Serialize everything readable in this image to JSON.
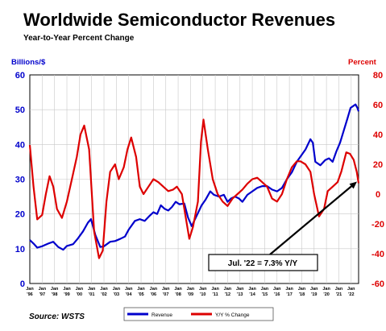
{
  "chart_data": {
    "type": "line",
    "title": "Worldwide Semiconductor Revenues",
    "subtitle": "Year-to-Year Percent Change",
    "y_left_label": "Billions/$",
    "y_right_label": "Percent",
    "y_left_range": [
      0,
      60
    ],
    "y_left_ticks": [
      "0",
      "10",
      "20",
      "30",
      "40",
      "50",
      "60"
    ],
    "y_right_range": [
      -60,
      80
    ],
    "y_right_ticks": [
      "-60",
      "-40",
      "-20",
      "0",
      "20",
      "40",
      "60",
      "80"
    ],
    "x_tick_top": [
      "Jan",
      "Jan",
      "Jan",
      "Jan",
      "Jan",
      "Jan",
      "Jan",
      "Jan",
      "Jan",
      "Jan",
      "Jan",
      "Jan",
      "Jan",
      "Jan",
      "Jan",
      "Jan",
      "Jan",
      "Jan",
      "Jan",
      "Jan",
      "Jan",
      "Jan",
      "Jan",
      "Jan",
      "Jan",
      "Jan",
      "Jan"
    ],
    "x_tick_bottom": [
      "'96",
      "'97",
      "'98",
      "'99",
      "'00",
      "'01",
      "'02",
      "'03",
      "'04",
      "'05",
      "'06",
      "'07",
      "'08",
      "'09",
      "'10",
      "'11",
      "'12",
      "'13",
      "'14",
      "'15",
      "'16",
      "'17",
      "'18",
      "'19",
      "'20",
      "'21",
      "'22"
    ],
    "x_start": 1996.0,
    "x_end": 2022.6,
    "grid": true,
    "legend_placement": "bottom",
    "annotation": "Jul. '22 = 7.3% Y/Y",
    "source": "Source: WSTS",
    "series": [
      {
        "name": "Revenue",
        "axis": "left",
        "color": "#0000cc",
        "points": [
          [
            1996.0,
            12.5
          ],
          [
            1996.3,
            11.5
          ],
          [
            1996.6,
            10.3
          ],
          [
            1997.0,
            10.7
          ],
          [
            1997.5,
            11.5
          ],
          [
            1997.9,
            12.0
          ],
          [
            1998.3,
            10.5
          ],
          [
            1998.7,
            9.7
          ],
          [
            1999.0,
            10.8
          ],
          [
            1999.5,
            11.3
          ],
          [
            1999.9,
            13.0
          ],
          [
            2000.3,
            15.0
          ],
          [
            2000.7,
            17.5
          ],
          [
            2000.95,
            18.5
          ],
          [
            2001.3,
            14.0
          ],
          [
            2001.7,
            10.5
          ],
          [
            2002.0,
            10.7
          ],
          [
            2002.5,
            12.0
          ],
          [
            2002.9,
            12.2
          ],
          [
            2003.3,
            12.8
          ],
          [
            2003.7,
            13.5
          ],
          [
            2004.0,
            15.5
          ],
          [
            2004.5,
            18.0
          ],
          [
            2004.9,
            18.5
          ],
          [
            2005.3,
            18.0
          ],
          [
            2005.7,
            19.5
          ],
          [
            2006.0,
            20.5
          ],
          [
            2006.3,
            20.0
          ],
          [
            2006.6,
            22.5
          ],
          [
            2006.9,
            21.5
          ],
          [
            2007.2,
            21.0
          ],
          [
            2007.5,
            22.0
          ],
          [
            2007.8,
            23.5
          ],
          [
            2008.1,
            22.8
          ],
          [
            2008.5,
            23.0
          ],
          [
            2008.8,
            19.0
          ],
          [
            2009.1,
            16.5
          ],
          [
            2009.5,
            19.5
          ],
          [
            2009.9,
            22.5
          ],
          [
            2010.2,
            24.0
          ],
          [
            2010.6,
            26.5
          ],
          [
            2010.9,
            25.5
          ],
          [
            2011.3,
            25.0
          ],
          [
            2011.7,
            25.5
          ],
          [
            2012.0,
            23.5
          ],
          [
            2012.3,
            24.5
          ],
          [
            2012.6,
            25.0
          ],
          [
            2012.9,
            24.5
          ],
          [
            2013.2,
            23.5
          ],
          [
            2013.6,
            25.5
          ],
          [
            2014.0,
            26.5
          ],
          [
            2014.4,
            27.5
          ],
          [
            2014.8,
            28.0
          ],
          [
            2015.2,
            28.0
          ],
          [
            2015.6,
            27.0
          ],
          [
            2016.0,
            26.5
          ],
          [
            2016.4,
            27.5
          ],
          [
            2016.8,
            30.0
          ],
          [
            2017.2,
            32.0
          ],
          [
            2017.6,
            35.0
          ],
          [
            2017.9,
            36.5
          ],
          [
            2018.3,
            38.5
          ],
          [
            2018.7,
            41.5
          ],
          [
            2018.9,
            40.5
          ],
          [
            2019.1,
            35.0
          ],
          [
            2019.5,
            34.0
          ],
          [
            2019.9,
            35.5
          ],
          [
            2020.2,
            36.0
          ],
          [
            2020.5,
            35.0
          ],
          [
            2020.8,
            38.0
          ],
          [
            2021.1,
            40.5
          ],
          [
            2021.4,
            44.0
          ],
          [
            2021.7,
            47.5
          ],
          [
            2021.95,
            50.5
          ],
          [
            2022.15,
            51.0
          ],
          [
            2022.35,
            51.5
          ],
          [
            2022.5,
            50.5
          ],
          [
            2022.6,
            49.5
          ]
        ]
      },
      {
        "name": "Y/Y % Change",
        "axis": "right",
        "color": "#dd0000",
        "points": [
          [
            1996.0,
            33
          ],
          [
            1996.3,
            5
          ],
          [
            1996.6,
            -17
          ],
          [
            1997.0,
            -14
          ],
          [
            1997.3,
            0
          ],
          [
            1997.6,
            12
          ],
          [
            1997.9,
            5
          ],
          [
            1998.2,
            -10
          ],
          [
            1998.6,
            -16
          ],
          [
            1999.0,
            -5
          ],
          [
            1999.4,
            10
          ],
          [
            1999.8,
            25
          ],
          [
            2000.1,
            40
          ],
          [
            2000.4,
            46
          ],
          [
            2000.8,
            30
          ],
          [
            2001.2,
            -25
          ],
          [
            2001.6,
            -43
          ],
          [
            2001.9,
            -38
          ],
          [
            2002.2,
            -5
          ],
          [
            2002.5,
            15
          ],
          [
            2002.9,
            20
          ],
          [
            2003.2,
            10
          ],
          [
            2003.6,
            18
          ],
          [
            2003.9,
            30
          ],
          [
            2004.2,
            38
          ],
          [
            2004.6,
            25
          ],
          [
            2004.9,
            5
          ],
          [
            2005.2,
            0
          ],
          [
            2005.6,
            5
          ],
          [
            2006.0,
            10
          ],
          [
            2006.4,
            8
          ],
          [
            2006.8,
            5
          ],
          [
            2007.2,
            2
          ],
          [
            2007.6,
            3
          ],
          [
            2007.9,
            5
          ],
          [
            2008.3,
            0
          ],
          [
            2008.6,
            -15
          ],
          [
            2008.9,
            -30
          ],
          [
            2009.2,
            -22
          ],
          [
            2009.6,
            -5
          ],
          [
            2009.85,
            35
          ],
          [
            2010.05,
            50
          ],
          [
            2010.4,
            30
          ],
          [
            2010.8,
            10
          ],
          [
            2011.2,
            0
          ],
          [
            2011.6,
            -5
          ],
          [
            2012.0,
            -8
          ],
          [
            2012.4,
            -3
          ],
          [
            2012.8,
            0
          ],
          [
            2013.2,
            3
          ],
          [
            2013.6,
            7
          ],
          [
            2014.0,
            10
          ],
          [
            2014.4,
            11
          ],
          [
            2014.8,
            8
          ],
          [
            2015.2,
            5
          ],
          [
            2015.6,
            -3
          ],
          [
            2016.0,
            -5
          ],
          [
            2016.4,
            0
          ],
          [
            2016.8,
            10
          ],
          [
            2017.2,
            18
          ],
          [
            2017.6,
            22
          ],
          [
            2017.9,
            22
          ],
          [
            2018.3,
            20
          ],
          [
            2018.7,
            15
          ],
          [
            2019.0,
            0
          ],
          [
            2019.4,
            -15
          ],
          [
            2019.8,
            -10
          ],
          [
            2020.1,
            2
          ],
          [
            2020.5,
            5
          ],
          [
            2020.9,
            8
          ],
          [
            2021.2,
            15
          ],
          [
            2021.6,
            28
          ],
          [
            2021.9,
            27
          ],
          [
            2022.2,
            23
          ],
          [
            2022.45,
            15
          ],
          [
            2022.6,
            7.3
          ]
        ]
      }
    ]
  }
}
